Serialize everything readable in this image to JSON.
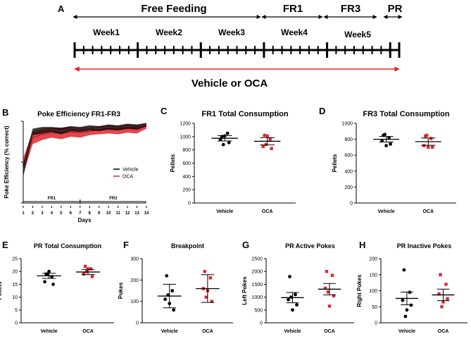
{
  "colors": {
    "vehicle": "#000000",
    "oca": "#e0262c",
    "text": "#000000"
  },
  "timeline": {
    "panel_letter": "A",
    "phases": [
      {
        "label": "Free Feeding"
      },
      {
        "label": "FR1"
      },
      {
        "label": "FR3"
      },
      {
        "label": "PR"
      }
    ],
    "weeks": [
      "Week1",
      "Week2",
      "Week3",
      "Week4",
      "Week5"
    ],
    "days_per_week": 7,
    "treatment_label": "Vehicle or OCA"
  },
  "chart_data": [
    {
      "panel": "B",
      "type": "line",
      "title": "Poke Efficiency FR1-FR3",
      "xlabel": "Days",
      "ylabel": "Poke Efficiency (% correct)",
      "x": [
        1,
        2,
        3,
        4,
        5,
        6,
        7,
        8,
        9,
        10,
        11,
        12,
        13,
        14
      ],
      "xlim": [
        1,
        14
      ],
      "ylim": [
        0,
        100
      ],
      "grid": false,
      "legend_position": "right",
      "phase_labels": [
        "FR1",
        "FR3"
      ],
      "series": [
        {
          "name": "Vehicle",
          "color_key": "vehicle",
          "values": [
            40,
            87,
            89,
            90,
            88,
            91,
            90,
            92,
            91,
            93,
            92,
            94,
            93,
            96
          ],
          "sem": [
            8,
            4,
            4,
            3,
            4,
            3,
            3,
            3,
            3,
            3,
            3,
            3,
            3,
            2
          ]
        },
        {
          "name": "OCA",
          "color_key": "oca",
          "values": [
            45,
            80,
            84,
            86,
            85,
            87,
            86,
            88,
            89,
            90,
            89,
            91,
            90,
            94
          ],
          "sem": [
            10,
            8,
            7,
            6,
            7,
            6,
            6,
            5,
            5,
            5,
            5,
            5,
            5,
            3
          ]
        }
      ]
    },
    {
      "panel": "C",
      "type": "scatter",
      "title": "FR1 Total Consumption",
      "ylabel": "Pellets",
      "ylim": [
        0,
        1200
      ],
      "yticks": [
        0,
        200,
        400,
        600,
        800,
        1000,
        1200
      ],
      "categories": [
        "Vehicle",
        "OCA"
      ],
      "groups": [
        {
          "category": "Vehicle",
          "mean": 975,
          "sem": 40,
          "points": [
            1000,
            1050,
            960,
            910,
            1010,
            880
          ],
          "color_key": "vehicle"
        },
        {
          "category": "OCA",
          "mean": 930,
          "sem": 55,
          "points": [
            1020,
            960,
            850,
            820,
            1010,
            880
          ],
          "color_key": "oca"
        }
      ]
    },
    {
      "panel": "D",
      "type": "scatter",
      "title": "FR3 Total Consumption",
      "ylabel": "Pellets",
      "ylim": [
        0,
        1000
      ],
      "yticks": [
        0,
        200,
        400,
        600,
        800,
        1000
      ],
      "categories": [
        "Vehicle",
        "OCA"
      ],
      "groups": [
        {
          "category": "Vehicle",
          "mean": 800,
          "sem": 35,
          "points": [
            850,
            820,
            780,
            740,
            720,
            860
          ],
          "color_key": "vehicle"
        },
        {
          "category": "OCA",
          "mean": 770,
          "sem": 45,
          "points": [
            840,
            810,
            720,
            700,
            700,
            850
          ],
          "color_key": "oca"
        }
      ]
    },
    {
      "panel": "E",
      "type": "scatter",
      "title": "PR Total Consumption",
      "ylabel": "Pellets",
      "ylim": [
        0,
        25
      ],
      "yticks": [
        0,
        5,
        10,
        15,
        20,
        25
      ],
      "categories": [
        "Vehicle",
        "OCA"
      ],
      "groups": [
        {
          "category": "Vehicle",
          "mean": 18.3,
          "sem": 1.0,
          "points": [
            19,
            18,
            16,
            15,
            20,
            19
          ],
          "color_key": "vehicle"
        },
        {
          "category": "OCA",
          "mean": 19.8,
          "sem": 1.0,
          "points": [
            22,
            21,
            19,
            18,
            21,
            20
          ],
          "color_key": "oca"
        }
      ]
    },
    {
      "panel": "F",
      "type": "scatter",
      "title": "Breakpoint",
      "ylabel": "Pokes",
      "ylim": [
        0,
        300
      ],
      "yticks": [
        0,
        100,
        200,
        300
      ],
      "categories": [
        "Vehicle",
        "OCA"
      ],
      "groups": [
        {
          "category": "Vehicle",
          "mean": 125,
          "sem": 55,
          "points": [
            220,
            150,
            110,
            60,
            90,
            130
          ],
          "color_key": "vehicle"
        },
        {
          "category": "OCA",
          "mean": 160,
          "sem": 65,
          "points": [
            240,
            210,
            160,
            100,
            150,
            120
          ],
          "color_key": "oca"
        }
      ]
    },
    {
      "panel": "G",
      "type": "scatter",
      "title": "PR Active Pokes",
      "ylabel": "Left Pokes",
      "ylim": [
        0,
        2500
      ],
      "yticks": [
        0,
        500,
        1000,
        1500,
        2000,
        2500
      ],
      "categories": [
        "Vehicle",
        "OCA"
      ],
      "groups": [
        {
          "category": "Vehicle",
          "mean": 980,
          "sem": 200,
          "points": [
            1800,
            1100,
            900,
            700,
            500,
            1000
          ],
          "color_key": "vehicle"
        },
        {
          "category": "OCA",
          "mean": 1310,
          "sem": 220,
          "points": [
            2000,
            1850,
            1350,
            1050,
            650,
            1200
          ],
          "color_key": "oca"
        }
      ]
    },
    {
      "panel": "H",
      "type": "scatter",
      "title": "PR Inactive Pokes",
      "ylabel": "Right Pokes",
      "ylim": [
        0,
        200
      ],
      "yticks": [
        0,
        50,
        100,
        150,
        200
      ],
      "categories": [
        "Vehicle",
        "OCA"
      ],
      "groups": [
        {
          "category": "Vehicle",
          "mean": 76,
          "sem": 20,
          "points": [
            165,
            95,
            70,
            55,
            40,
            20
          ],
          "color_key": "vehicle"
        },
        {
          "category": "OCA",
          "mean": 87,
          "sem": 18,
          "points": [
            150,
            120,
            90,
            75,
            65,
            50
          ],
          "color_key": "oca"
        }
      ]
    }
  ]
}
